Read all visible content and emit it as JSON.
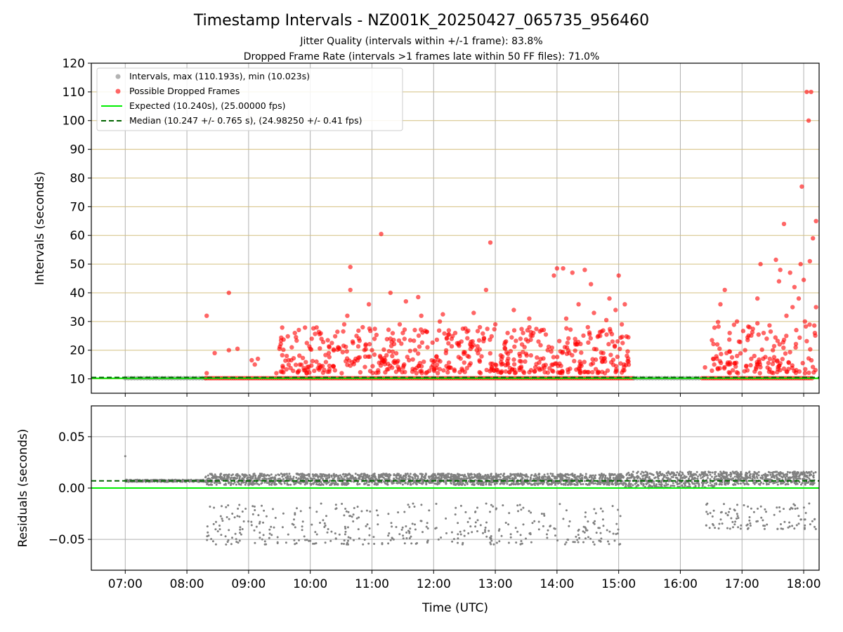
{
  "chart_data": [
    {
      "type": "scatter",
      "title": "Timestamp Intervals - NZ001K_20250427_065735_956460",
      "subtitle_lines": [
        "Jitter Quality (intervals within +/-1 frame): 83.8%",
        "Dropped Frame Rate (intervals >1 frames late within 50 FF files): 71.0%"
      ],
      "ylabel": "Intervals (seconds)",
      "xlim_hours": [
        6.45,
        18.25
      ],
      "ylim": [
        5,
        120
      ],
      "yticks": [
        10,
        20,
        30,
        40,
        50,
        60,
        70,
        80,
        90,
        100,
        110,
        120
      ],
      "grid": true,
      "legend_position": "top-left",
      "legend": [
        "Intervals, max (110.193s), min (10.023s)",
        "Possible Dropped Frames",
        "Expected (10.240s), (25.00000 fps)",
        "Median (10.247 +/- 0.765 s), (24.98250 +/- 0.41 fps)"
      ],
      "colors": {
        "intervals": "#808080",
        "dropped": "#ff0000",
        "expected": "#00ee00",
        "median": "#006400",
        "hgrid": "#d4c080",
        "vgrid": "#b0b0b0"
      },
      "expected_value": 10.24,
      "median_value": 10.247,
      "baseline_segments": [
        {
          "color": "gray",
          "x": [
            7.0,
            8.3
          ],
          "y": 10.24
        },
        {
          "color": "red",
          "x": [
            8.3,
            15.25
          ],
          "y": 10.24
        },
        {
          "color": "gray",
          "x": [
            15.25,
            16.35
          ],
          "y": 10.24
        },
        {
          "color": "red",
          "x": [
            16.35,
            18.15
          ],
          "y": 10.24
        }
      ],
      "dropped_points": [
        [
          8.32,
          32.0
        ],
        [
          8.32,
          12.0
        ],
        [
          8.45,
          19.0
        ],
        [
          8.68,
          40.0
        ],
        [
          8.68,
          20.0
        ],
        [
          8.82,
          20.5
        ],
        [
          9.05,
          16.5
        ],
        [
          9.1,
          15.0
        ],
        [
          9.15,
          17.0
        ],
        [
          9.45,
          12.0
        ],
        [
          9.5,
          20.5
        ],
        [
          9.65,
          16.5
        ],
        [
          9.7,
          21.0
        ],
        [
          9.75,
          26.0
        ],
        [
          9.9,
          13.0
        ],
        [
          10.0,
          20.5
        ],
        [
          10.1,
          16.0
        ],
        [
          10.2,
          14.5
        ],
        [
          10.3,
          19.0
        ],
        [
          10.35,
          22.5
        ],
        [
          10.45,
          21.0
        ],
        [
          10.55,
          29.0
        ],
        [
          10.6,
          32.0
        ],
        [
          10.65,
          49.0
        ],
        [
          10.65,
          41.0
        ],
        [
          10.75,
          25.0
        ],
        [
          10.85,
          28.0
        ],
        [
          10.95,
          36.0
        ],
        [
          11.0,
          20.0
        ],
        [
          11.1,
          13.0
        ],
        [
          11.15,
          60.5
        ],
        [
          11.3,
          24.0
        ],
        [
          11.3,
          40.0
        ],
        [
          11.45,
          29.0
        ],
        [
          11.55,
          37.0
        ],
        [
          11.6,
          16.5
        ],
        [
          11.75,
          38.5
        ],
        [
          11.8,
          32.0
        ],
        [
          11.9,
          21.0
        ],
        [
          12.0,
          16.0
        ],
        [
          12.1,
          30.0
        ],
        [
          12.15,
          32.5
        ],
        [
          12.25,
          14.0
        ],
        [
          12.35,
          26.0
        ],
        [
          12.45,
          23.0
        ],
        [
          12.55,
          18.0
        ],
        [
          12.65,
          33.0
        ],
        [
          12.75,
          28.0
        ],
        [
          12.85,
          41.0
        ],
        [
          12.92,
          57.5
        ],
        [
          13.0,
          29.0
        ],
        [
          13.1,
          15.0
        ],
        [
          13.2,
          26.0
        ],
        [
          13.3,
          34.0
        ],
        [
          13.45,
          26.0
        ],
        [
          13.55,
          31.0
        ],
        [
          13.7,
          23.0
        ],
        [
          13.85,
          20.0
        ],
        [
          13.95,
          46.0
        ],
        [
          14.0,
          48.5
        ],
        [
          14.1,
          48.5
        ],
        [
          14.15,
          31.0
        ],
        [
          14.25,
          47.0
        ],
        [
          14.35,
          36.0
        ],
        [
          14.45,
          48.0
        ],
        [
          14.5,
          28.0
        ],
        [
          14.55,
          43.0
        ],
        [
          14.7,
          25.0
        ],
        [
          14.8,
          30.5
        ],
        [
          14.9,
          23.0
        ],
        [
          14.95,
          34.0
        ],
        [
          15.0,
          46.0
        ],
        [
          15.05,
          29.0
        ],
        [
          15.1,
          36.0
        ],
        [
          14.85,
          38.0
        ],
        [
          14.6,
          33.0
        ],
        [
          14.2,
          19.0
        ],
        [
          13.65,
          14.0
        ],
        [
          13.4,
          18.0
        ],
        [
          12.7,
          20.0
        ],
        [
          12.2,
          19.0
        ],
        [
          11.7,
          20.0
        ],
        [
          11.2,
          16.0
        ],
        [
          10.8,
          17.5
        ],
        [
          10.4,
          13.0
        ],
        [
          10.9,
          22.0
        ],
        [
          11.5,
          26.0
        ],
        [
          12.4,
          22.0
        ],
        [
          13.15,
          22.0
        ],
        [
          13.75,
          27.0
        ],
        [
          14.3,
          22.0
        ],
        [
          14.75,
          19.0
        ],
        [
          16.4,
          14.0
        ],
        [
          16.55,
          15.0
        ],
        [
          16.6,
          22.0
        ],
        [
          16.65,
          36.0
        ],
        [
          16.72,
          41.0
        ],
        [
          16.8,
          26.0
        ],
        [
          16.85,
          13.0
        ],
        [
          16.95,
          23.0
        ],
        [
          17.05,
          20.0
        ],
        [
          17.12,
          28.0
        ],
        [
          17.2,
          18.0
        ],
        [
          17.25,
          38.0
        ],
        [
          17.3,
          50.0
        ],
        [
          17.35,
          26.0
        ],
        [
          17.45,
          17.0
        ],
        [
          17.5,
          20.0
        ],
        [
          17.55,
          51.5
        ],
        [
          17.6,
          44.0
        ],
        [
          17.62,
          48.0
        ],
        [
          17.68,
          64.0
        ],
        [
          17.72,
          32.0
        ],
        [
          17.78,
          47.0
        ],
        [
          17.85,
          42.0
        ],
        [
          17.92,
          38.0
        ],
        [
          17.95,
          50.0
        ],
        [
          17.97,
          77.0
        ],
        [
          18.0,
          44.5
        ],
        [
          18.02,
          30.0
        ],
        [
          18.05,
          110.0
        ],
        [
          18.08,
          100.0
        ],
        [
          18.12,
          110.0
        ],
        [
          18.15,
          59.0
        ],
        [
          18.2,
          65.0
        ],
        [
          18.2,
          35.0
        ],
        [
          18.1,
          51.0
        ],
        [
          18.18,
          26.0
        ],
        [
          17.88,
          27.0
        ],
        [
          17.82,
          35.0
        ],
        [
          17.4,
          24.0
        ],
        [
          17.15,
          17.0
        ],
        [
          16.92,
          18.0
        ],
        [
          16.75,
          19.0
        ]
      ]
    },
    {
      "type": "scatter",
      "ylabel": "Residuals (seconds)",
      "xlabel": "Time (UTC)",
      "xlim_hours": [
        6.45,
        18.25
      ],
      "ylim": [
        -0.08,
        0.08
      ],
      "ytick_values": [
        0.05,
        0.0,
        -0.05
      ],
      "ytick_labels": [
        "0.05",
        "0.00",
        "−0.05"
      ],
      "xtick_hours": [
        7,
        8,
        9,
        10,
        11,
        12,
        13,
        14,
        15,
        16,
        17,
        18
      ],
      "xtick_labels": [
        "07:00",
        "08:00",
        "09:00",
        "10:00",
        "11:00",
        "12:00",
        "13:00",
        "14:00",
        "15:00",
        "16:00",
        "17:00",
        "18:00"
      ],
      "grid": true,
      "expected_residual": 0.0,
      "median_residual": 0.007,
      "residual_outlier_example": [
        7.0,
        0.031
      ],
      "residual_bands": [
        {
          "x": [
            7.0,
            8.3
          ],
          "y": [
            0.006,
            0.008
          ]
        },
        {
          "x": [
            8.3,
            15.1
          ],
          "y": [
            0.003,
            0.014
          ]
        },
        {
          "x": [
            15.1,
            16.6
          ],
          "y": [
            0.0,
            0.016
          ]
        },
        {
          "x": [
            16.6,
            18.2
          ],
          "y": [
            0.003,
            0.016
          ]
        }
      ],
      "residual_lower_bands": [
        {
          "x": [
            8.3,
            15.1
          ],
          "y": [
            -0.055,
            -0.015
          ]
        },
        {
          "x": [
            16.4,
            18.2
          ],
          "y": [
            -0.04,
            -0.015
          ]
        }
      ]
    }
  ]
}
